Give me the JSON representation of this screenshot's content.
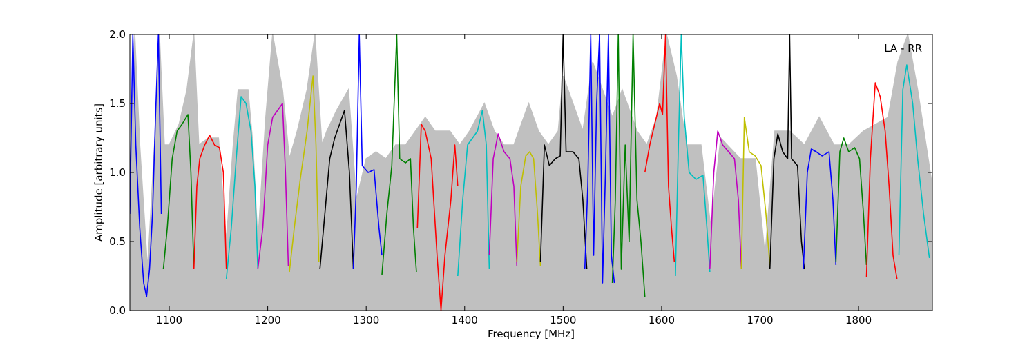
{
  "chart_data": {
    "type": "line",
    "title": "",
    "xlabel": "Frequency [MHz]",
    "ylabel": "Amplitude [arbitrary units]",
    "xlim": [
      1060,
      1875
    ],
    "ylim": [
      0.0,
      2.0
    ],
    "x_ticks": [
      1100,
      1200,
      1300,
      1400,
      1500,
      1600,
      1700,
      1800
    ],
    "x_tick_labels": [
      "1100",
      "1200",
      "1300",
      "1400",
      "1500",
      "1600",
      "1700",
      "1800"
    ],
    "y_ticks": [
      0.0,
      0.5,
      1.0,
      1.5,
      2.0
    ],
    "y_tick_labels": [
      "0.0",
      "0.5",
      "1.0",
      "1.5",
      "2.0"
    ],
    "annotation": "LA - RR",
    "annotation_position": "top-right",
    "legend": "none",
    "grid": false,
    "background_color": "#c0c0c0",
    "background_series": [
      [
        1060,
        0.9
      ],
      [
        1065,
        2.0
      ],
      [
        1070,
        1.2
      ],
      [
        1078,
        0.3
      ],
      [
        1085,
        1.2
      ],
      [
        1090,
        2.0
      ],
      [
        1095,
        1.2
      ],
      [
        1100,
        1.2
      ],
      [
        1110,
        1.35
      ],
      [
        1118,
        1.6
      ],
      [
        1125,
        2.0
      ],
      [
        1130,
        1.2
      ],
      [
        1140,
        1.25
      ],
      [
        1150,
        1.25
      ],
      [
        1158,
        0.5
      ],
      [
        1165,
        1.2
      ],
      [
        1170,
        1.6
      ],
      [
        1180,
        1.6
      ],
      [
        1185,
        1.2
      ],
      [
        1190,
        0.5
      ],
      [
        1198,
        1.4
      ],
      [
        1205,
        2.0
      ],
      [
        1215,
        1.6
      ],
      [
        1222,
        1.1
      ],
      [
        1230,
        1.3
      ],
      [
        1240,
        1.6
      ],
      [
        1248,
        2.0
      ],
      [
        1255,
        1.2
      ],
      [
        1260,
        1.3
      ],
      [
        1270,
        1.45
      ],
      [
        1282,
        1.6
      ],
      [
        1290,
        0.8
      ],
      [
        1300,
        1.1
      ],
      [
        1310,
        1.15
      ],
      [
        1320,
        1.1
      ],
      [
        1330,
        1.2
      ],
      [
        1340,
        1.2
      ],
      [
        1350,
        1.3
      ],
      [
        1360,
        1.4
      ],
      [
        1370,
        1.3
      ],
      [
        1385,
        1.3
      ],
      [
        1395,
        1.2
      ],
      [
        1405,
        1.3
      ],
      [
        1420,
        1.5
      ],
      [
        1430,
        1.3
      ],
      [
        1440,
        1.2
      ],
      [
        1450,
        1.2
      ],
      [
        1465,
        1.5
      ],
      [
        1475,
        1.3
      ],
      [
        1485,
        1.2
      ],
      [
        1495,
        1.3
      ],
      [
        1500,
        1.7
      ],
      [
        1510,
        1.5
      ],
      [
        1520,
        1.3
      ],
      [
        1530,
        1.8
      ],
      [
        1540,
        1.6
      ],
      [
        1550,
        1.4
      ],
      [
        1560,
        1.6
      ],
      [
        1575,
        1.3
      ],
      [
        1585,
        1.2
      ],
      [
        1595,
        1.4
      ],
      [
        1605,
        2.0
      ],
      [
        1615,
        1.7
      ],
      [
        1625,
        1.2
      ],
      [
        1640,
        1.2
      ],
      [
        1650,
        0.6
      ],
      [
        1660,
        1.25
      ],
      [
        1680,
        1.1
      ],
      [
        1695,
        1.1
      ],
      [
        1705,
        0.4
      ],
      [
        1715,
        1.3
      ],
      [
        1730,
        1.3
      ],
      [
        1745,
        1.2
      ],
      [
        1760,
        1.4
      ],
      [
        1775,
        1.2
      ],
      [
        1790,
        1.2
      ],
      [
        1805,
        1.3
      ],
      [
        1830,
        1.4
      ],
      [
        1840,
        1.8
      ],
      [
        1850,
        2.0
      ],
      [
        1860,
        1.6
      ],
      [
        1875,
        0.9
      ]
    ],
    "series": [
      {
        "color": "#0000ff",
        "points": [
          [
            1060,
            0.7
          ],
          [
            1063,
            2.0
          ],
          [
            1066,
            1.2
          ],
          [
            1070,
            0.6
          ],
          [
            1074,
            0.2
          ],
          [
            1077,
            0.1
          ],
          [
            1080,
            0.3
          ],
          [
            1083,
            0.7
          ],
          [
            1086,
            1.4
          ],
          [
            1089,
            2.0
          ],
          [
            1092,
            0.7
          ]
        ]
      },
      {
        "color": "#008000",
        "points": [
          [
            1094,
            0.3
          ],
          [
            1098,
            0.6
          ],
          [
            1103,
            1.1
          ],
          [
            1108,
            1.3
          ],
          [
            1113,
            1.35
          ],
          [
            1119,
            1.42
          ],
          [
            1122,
            1.0
          ],
          [
            1125,
            0.3
          ]
        ]
      },
      {
        "color": "#ff0000",
        "points": [
          [
            1125,
            0.3
          ],
          [
            1128,
            0.9
          ],
          [
            1131,
            1.1
          ],
          [
            1136,
            1.2
          ],
          [
            1141,
            1.27
          ],
          [
            1146,
            1.2
          ],
          [
            1151,
            1.18
          ],
          [
            1155,
            1.0
          ],
          [
            1158,
            0.3
          ]
        ]
      },
      {
        "color": "#00bfbf",
        "points": [
          [
            1158,
            0.23
          ],
          [
            1163,
            0.6
          ],
          [
            1168,
            1.1
          ],
          [
            1173,
            1.55
          ],
          [
            1178,
            1.5
          ],
          [
            1183,
            1.3
          ],
          [
            1187,
            0.9
          ],
          [
            1190,
            0.3
          ]
        ]
      },
      {
        "color": "#bf00bf",
        "points": [
          [
            1190,
            0.3
          ],
          [
            1195,
            0.6
          ],
          [
            1200,
            1.2
          ],
          [
            1205,
            1.4
          ],
          [
            1210,
            1.45
          ],
          [
            1215,
            1.5
          ],
          [
            1218,
            1.0
          ],
          [
            1221,
            0.32
          ]
        ]
      },
      {
        "color": "#bfbf00",
        "points": [
          [
            1222,
            0.28
          ],
          [
            1227,
            0.6
          ],
          [
            1233,
            0.95
          ],
          [
            1240,
            1.3
          ],
          [
            1246,
            1.7
          ],
          [
            1249,
            1.2
          ],
          [
            1252,
            0.35
          ]
        ]
      },
      {
        "color": "#000000",
        "points": [
          [
            1253,
            0.3
          ],
          [
            1258,
            0.7
          ],
          [
            1263,
            1.1
          ],
          [
            1268,
            1.25
          ],
          [
            1273,
            1.35
          ],
          [
            1278,
            1.45
          ],
          [
            1283,
            1.0
          ],
          [
            1287,
            0.3
          ]
        ]
      },
      {
        "color": "#0000ff",
        "points": [
          [
            1287,
            0.3
          ],
          [
            1290,
            0.9
          ],
          [
            1293,
            2.0
          ],
          [
            1296,
            1.05
          ],
          [
            1302,
            1.0
          ],
          [
            1308,
            1.02
          ],
          [
            1313,
            0.6
          ],
          [
            1316,
            0.4
          ]
        ]
      },
      {
        "color": "#008000",
        "points": [
          [
            1316,
            0.26
          ],
          [
            1321,
            0.7
          ],
          [
            1326,
            1.05
          ],
          [
            1331,
            2.0
          ],
          [
            1334,
            1.1
          ],
          [
            1340,
            1.07
          ],
          [
            1345,
            1.1
          ],
          [
            1348,
            0.6
          ],
          [
            1351,
            0.28
          ]
        ]
      },
      {
        "color": "#ff0000",
        "points": [
          [
            1352,
            0.6
          ],
          [
            1356,
            1.35
          ],
          [
            1360,
            1.3
          ],
          [
            1366,
            1.1
          ],
          [
            1372,
            0.4
          ],
          [
            1376,
            0.0
          ],
          [
            1380,
            0.4
          ],
          [
            1386,
            0.8
          ],
          [
            1390,
            1.2
          ],
          [
            1393,
            0.9
          ]
        ]
      },
      {
        "color": "#00bfbf",
        "points": [
          [
            1393,
            0.25
          ],
          [
            1398,
            0.8
          ],
          [
            1403,
            1.2
          ],
          [
            1408,
            1.25
          ],
          [
            1413,
            1.3
          ],
          [
            1418,
            1.45
          ],
          [
            1422,
            1.2
          ],
          [
            1425,
            0.3
          ]
        ]
      },
      {
        "color": "#bf00bf",
        "points": [
          [
            1425,
            0.4
          ],
          [
            1429,
            1.1
          ],
          [
            1434,
            1.28
          ],
          [
            1440,
            1.15
          ],
          [
            1446,
            1.1
          ],
          [
            1450,
            0.9
          ],
          [
            1453,
            0.32
          ]
        ]
      },
      {
        "color": "#bfbf00",
        "points": [
          [
            1453,
            0.35
          ],
          [
            1457,
            0.9
          ],
          [
            1462,
            1.12
          ],
          [
            1466,
            1.15
          ],
          [
            1470,
            1.1
          ],
          [
            1474,
            0.7
          ],
          [
            1477,
            0.32
          ]
        ]
      },
      {
        "color": "#000000",
        "points": [
          [
            1477,
            0.35
          ],
          [
            1481,
            1.2
          ],
          [
            1486,
            1.05
          ],
          [
            1492,
            1.1
          ],
          [
            1497,
            1.12
          ],
          [
            1500,
            2.0
          ],
          [
            1503,
            1.15
          ],
          [
            1510,
            1.15
          ],
          [
            1516,
            1.1
          ],
          [
            1520,
            0.8
          ],
          [
            1524,
            0.3
          ]
        ]
      },
      {
        "color": "#0000ff",
        "points": [
          [
            1522,
            0.3
          ],
          [
            1525,
            0.9
          ],
          [
            1528,
            2.0
          ],
          [
            1531,
            0.4
          ],
          [
            1534,
            1.5
          ],
          [
            1537,
            2.0
          ],
          [
            1540,
            0.2
          ],
          [
            1543,
            1.0
          ],
          [
            1546,
            2.0
          ],
          [
            1549,
            0.4
          ],
          [
            1552,
            0.2
          ]
        ]
      },
      {
        "color": "#008000",
        "points": [
          [
            1550,
            0.2
          ],
          [
            1553,
            0.8
          ],
          [
            1556,
            2.0
          ],
          [
            1559,
            0.3
          ],
          [
            1563,
            1.2
          ],
          [
            1567,
            0.5
          ],
          [
            1571,
            2.0
          ],
          [
            1575,
            0.8
          ],
          [
            1579,
            0.5
          ],
          [
            1583,
            0.1
          ]
        ]
      },
      {
        "color": "#ff0000",
        "points": [
          [
            1583,
            1.0
          ],
          [
            1588,
            1.2
          ],
          [
            1593,
            1.35
          ],
          [
            1598,
            1.5
          ],
          [
            1601,
            1.42
          ],
          [
            1604,
            2.0
          ],
          [
            1607,
            0.9
          ],
          [
            1610,
            0.6
          ],
          [
            1613,
            0.35
          ]
        ]
      },
      {
        "color": "#00bfbf",
        "points": [
          [
            1614,
            0.25
          ],
          [
            1617,
            1.2
          ],
          [
            1620,
            2.0
          ],
          [
            1623,
            1.4
          ],
          [
            1628,
            1.0
          ],
          [
            1635,
            0.95
          ],
          [
            1642,
            0.98
          ],
          [
            1646,
            0.6
          ],
          [
            1649,
            0.28
          ]
        ]
      },
      {
        "color": "#bf00bf",
        "points": [
          [
            1649,
            0.3
          ],
          [
            1653,
            1.0
          ],
          [
            1657,
            1.3
          ],
          [
            1662,
            1.2
          ],
          [
            1668,
            1.15
          ],
          [
            1674,
            1.1
          ],
          [
            1678,
            0.8
          ],
          [
            1681,
            0.3
          ]
        ]
      },
      {
        "color": "#bfbf00",
        "points": [
          [
            1681,
            0.3
          ],
          [
            1684,
            1.4
          ],
          [
            1689,
            1.15
          ],
          [
            1695,
            1.12
          ],
          [
            1701,
            1.05
          ],
          [
            1706,
            0.7
          ],
          [
            1710,
            0.32
          ]
        ]
      },
      {
        "color": "#000000",
        "points": [
          [
            1710,
            0.3
          ],
          [
            1714,
            1.1
          ],
          [
            1718,
            1.28
          ],
          [
            1723,
            1.15
          ],
          [
            1728,
            1.1
          ],
          [
            1730,
            2.0
          ],
          [
            1732,
            1.1
          ],
          [
            1738,
            1.05
          ],
          [
            1742,
            0.5
          ],
          [
            1745,
            0.3
          ]
        ]
      },
      {
        "color": "#0000ff",
        "points": [
          [
            1744,
            0.3
          ],
          [
            1748,
            1.0
          ],
          [
            1752,
            1.17
          ],
          [
            1757,
            1.15
          ],
          [
            1763,
            1.12
          ],
          [
            1770,
            1.15
          ],
          [
            1774,
            0.8
          ],
          [
            1777,
            0.33
          ]
        ]
      },
      {
        "color": "#008000",
        "points": [
          [
            1777,
            0.35
          ],
          [
            1781,
            1.15
          ],
          [
            1785,
            1.25
          ],
          [
            1790,
            1.15
          ],
          [
            1796,
            1.18
          ],
          [
            1801,
            1.1
          ],
          [
            1805,
            0.7
          ],
          [
            1808,
            0.33
          ]
        ]
      },
      {
        "color": "#ff0000",
        "points": [
          [
            1808,
            0.24
          ],
          [
            1812,
            1.1
          ],
          [
            1817,
            1.65
          ],
          [
            1822,
            1.55
          ],
          [
            1827,
            1.3
          ],
          [
            1831,
            0.9
          ],
          [
            1835,
            0.4
          ],
          [
            1839,
            0.23
          ]
        ]
      },
      {
        "color": "#00bfbf",
        "points": [
          [
            1841,
            0.4
          ],
          [
            1845,
            1.6
          ],
          [
            1849,
            1.78
          ],
          [
            1855,
            1.5
          ],
          [
            1860,
            1.1
          ],
          [
            1866,
            0.7
          ],
          [
            1872,
            0.38
          ]
        ]
      }
    ]
  }
}
